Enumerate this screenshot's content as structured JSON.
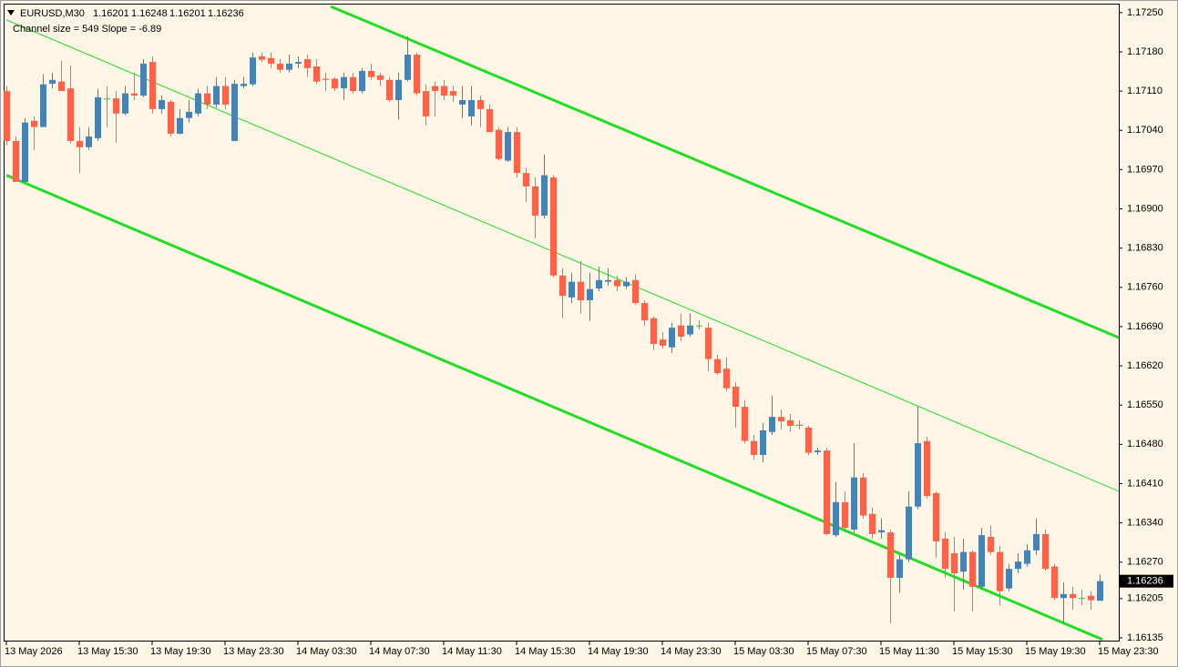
{
  "chart_data": {
    "type": "candlestick",
    "symbol": "EURUSD,M30",
    "quote": [
      1.16201,
      1.16248,
      1.16201,
      1.16236
    ],
    "channel_label": "Channel size = 549 Slope = -6.89",
    "up_color": "#4682b4",
    "down_color": "#ff6347",
    "doji_color": "#32cd32",
    "categories": [
      "13 May 2026",
      null,
      null,
      null,
      null,
      null,
      null,
      null,
      "13 May 15:30",
      null,
      null,
      null,
      null,
      null,
      null,
      null,
      "13 May 19:30",
      null,
      null,
      null,
      null,
      null,
      null,
      null,
      "13 May 23:30",
      null,
      null,
      null,
      null,
      null,
      null,
      null,
      "14 May 03:30",
      null,
      null,
      null,
      null,
      null,
      null,
      null,
      "14 May 07:30",
      null,
      null,
      null,
      null,
      null,
      null,
      null,
      "14 May 11:30",
      null,
      null,
      null,
      null,
      null,
      null,
      null,
      "14 May 15:30",
      null,
      null,
      null,
      null,
      null,
      null,
      null,
      "14 May 19:30",
      null,
      null,
      null,
      null,
      null,
      null,
      null,
      "14 May 23:30",
      null,
      null,
      null,
      null,
      null,
      null,
      null,
      "15 May 03:30",
      null,
      null,
      null,
      null,
      null,
      null,
      null,
      "15 May 07:30",
      null,
      null,
      null,
      null,
      null,
      null,
      null,
      "15 May 11:30",
      null,
      null,
      null,
      null,
      null,
      null,
      null,
      "15 May 15:30",
      null,
      null,
      null,
      null,
      null,
      null,
      null,
      "15 May 19:30",
      null,
      null,
      null,
      null,
      null,
      null,
      null,
      "15 May 23:30"
    ],
    "open": [
      1.1711,
      1.17021,
      1.16948,
      1.17057,
      1.17046,
      1.17123,
      1.17127,
      1.17115,
      1.17021,
      1.1701,
      1.17026,
      1.17097,
      1.17097,
      1.1707,
      1.17106,
      1.17102,
      1.17162,
      1.17078,
      1.17091,
      1.17034,
      1.17062,
      1.1707,
      1.17106,
      1.17086,
      1.17119,
      1.17021,
      1.17119,
      1.17122,
      1.17172,
      1.17169,
      1.17159,
      1.17148,
      1.17159,
      1.17167,
      1.17154,
      1.17132,
      1.17132,
      1.17115,
      1.17135,
      1.1711,
      1.17146,
      1.17138,
      1.1713,
      1.17094,
      1.1713,
      1.17175,
      1.1711,
      1.17119,
      1.17119,
      1.1711,
      1.17086,
      1.17065,
      1.17094,
      1.17078,
      1.17041,
      1.16986,
      1.17037,
      1.16964,
      1.1694,
      1.16888,
      1.16956,
      1.16781,
      1.16742,
      1.1677,
      1.16737,
      1.16758,
      1.1677,
      1.16773,
      1.16762,
      1.16773,
      1.16732,
      1.16705,
      1.16667,
      1.16653,
      1.16692,
      1.16676,
      1.16692,
      1.16688,
      1.16632,
      1.16615,
      1.16583,
      1.16547,
      1.16486,
      1.16461,
      1.16502,
      1.16529,
      1.16523,
      1.16515,
      1.1651,
      1.16466,
      1.16469,
      1.16318,
      1.16377,
      1.16328,
      1.16421,
      1.16356,
      1.16323,
      1.16323,
      1.16242,
      1.16275,
      1.16369,
      1.16486,
      1.16393,
      1.16312,
      1.16286,
      1.16253,
      1.16288,
      1.16226,
      1.16315,
      1.16288,
      1.16223,
      1.16258,
      1.16267,
      1.16291,
      1.1632,
      1.16262,
      1.16206,
      1.16213,
      1.16206,
      1.1621,
      1.16201
    ],
    "high": [
      1.17119,
      1.17029,
      1.17062,
      1.17065,
      1.1714,
      1.17143,
      1.17164,
      1.17156,
      1.17046,
      1.17046,
      1.17114,
      1.17119,
      1.1711,
      1.17119,
      1.17143,
      1.17167,
      1.17172,
      1.17102,
      1.17094,
      1.17078,
      1.17094,
      1.17114,
      1.17119,
      1.17135,
      1.17135,
      1.1713,
      1.17135,
      1.17179,
      1.17179,
      1.17179,
      1.17167,
      1.17175,
      1.17172,
      1.17175,
      1.17167,
      1.17143,
      1.17135,
      1.17143,
      1.17143,
      1.17151,
      1.17159,
      1.17143,
      1.17135,
      1.17143,
      1.17208,
      1.17179,
      1.17122,
      1.17127,
      1.1713,
      1.17119,
      1.17119,
      1.17119,
      1.17102,
      1.17086,
      1.17046,
      1.17046,
      1.17046,
      1.16973,
      1.16956,
      1.16997,
      1.1696,
      1.16794,
      1.16786,
      1.16807,
      1.16786,
      1.16797,
      1.16794,
      1.16781,
      1.16778,
      1.16783,
      1.16737,
      1.16708,
      1.1668,
      1.16697,
      1.16713,
      1.16713,
      1.16701,
      1.16697,
      1.1664,
      1.16635,
      1.16591,
      1.16559,
      1.16497,
      1.16518,
      1.16567,
      1.16542,
      1.16534,
      1.16523,
      1.16513,
      1.16474,
      1.16474,
      1.16413,
      1.16396,
      1.16482,
      1.16429,
      1.16367,
      1.16348,
      1.16328,
      1.16283,
      1.16396,
      1.16547,
      1.16494,
      1.16396,
      1.16323,
      1.16315,
      1.16312,
      1.16291,
      1.16331,
      1.16335,
      1.16299,
      1.16267,
      1.16286,
      1.16302,
      1.16348,
      1.16328,
      1.16267,
      1.16234,
      1.16226,
      1.16221,
      1.16218,
      1.16248
    ],
    "low": [
      1.17013,
      1.16948,
      1.16948,
      1.17005,
      1.17046,
      1.17115,
      1.1711,
      1.17016,
      1.16964,
      1.17005,
      1.17021,
      1.17046,
      1.17018,
      1.17067,
      1.17094,
      1.17099,
      1.1707,
      1.1707,
      1.17029,
      1.17033,
      1.17054,
      1.17065,
      1.17078,
      1.17081,
      1.17078,
      1.17021,
      1.17115,
      1.17119,
      1.17162,
      1.17151,
      1.17143,
      1.17143,
      1.17151,
      1.17135,
      1.17123,
      1.1711,
      1.1711,
      1.17094,
      1.17106,
      1.17106,
      1.1713,
      1.17119,
      1.17091,
      1.17059,
      1.17127,
      1.17102,
      1.17049,
      1.17065,
      1.17094,
      1.17091,
      1.17062,
      1.17049,
      1.17046,
      1.17037,
      1.16986,
      1.16984,
      1.16956,
      1.16912,
      1.16848,
      1.16883,
      1.16778,
      1.16705,
      1.16732,
      1.16713,
      1.167,
      1.16753,
      1.16763,
      1.16753,
      1.16757,
      1.16729,
      1.16692,
      1.16648,
      1.16651,
      1.16643,
      1.16664,
      1.16672,
      1.16685,
      1.1661,
      1.16604,
      1.16575,
      1.1651,
      1.16482,
      1.16453,
      1.16448,
      1.16497,
      1.16507,
      1.16502,
      1.16507,
      1.16461,
      1.16461,
      1.16318,
      1.16315,
      1.16323,
      1.16323,
      1.16348,
      1.16312,
      1.16312,
      1.16161,
      1.16215,
      1.1627,
      1.16364,
      1.16383,
      1.16278,
      1.16242,
      1.16182,
      1.16221,
      1.16182,
      1.16221,
      1.16283,
      1.16193,
      1.16218,
      1.1625,
      1.16262,
      1.16283,
      1.16255,
      1.16202,
      1.16161,
      1.16185,
      1.16193,
      1.16185,
      1.16201
    ],
    "close": [
      1.17021,
      1.16948,
      1.17054,
      1.17046,
      1.17122,
      1.1713,
      1.1711,
      1.17021,
      1.1701,
      1.17029,
      1.17099,
      1.17097,
      1.1707,
      1.17106,
      1.17102,
      1.17159,
      1.17078,
      1.17094,
      1.17034,
      1.17062,
      1.17073,
      1.17106,
      1.17086,
      1.17119,
      1.17086,
      1.17123,
      1.17123,
      1.1717,
      1.17166,
      1.17159,
      1.17148,
      1.17159,
      1.17162,
      1.17151,
      1.17127,
      1.1713,
      1.17115,
      1.17135,
      1.1711,
      1.17146,
      1.17135,
      1.1713,
      1.17094,
      1.1713,
      1.17175,
      1.17106,
      1.17065,
      1.1711,
      1.17102,
      1.17102,
      1.17094,
      1.17094,
      1.17078,
      1.17037,
      1.16989,
      1.17037,
      1.16964,
      1.1694,
      1.16888,
      1.1696,
      1.16781,
      1.16745,
      1.1677,
      1.16737,
      1.16757,
      1.16773,
      1.16773,
      1.16762,
      1.1677,
      1.16732,
      1.16701,
      1.16659,
      1.16656,
      1.16688,
      1.16672,
      1.16692,
      1.16692,
      1.16632,
      1.16607,
      1.1658,
      1.16547,
      1.16486,
      1.16461,
      1.16505,
      1.16529,
      1.16521,
      1.16513,
      1.16513,
      1.16465,
      1.16469,
      1.1632,
      1.16377,
      1.16331,
      1.16421,
      1.16353,
      1.1632,
      1.16327,
      1.16242,
      1.16275,
      1.16369,
      1.16482,
      1.16388,
      1.16307,
      1.16258,
      1.1625,
      1.16288,
      1.16226,
      1.16318,
      1.16288,
      1.16218,
      1.16258,
      1.16271,
      1.16291,
      1.1632,
      1.16258,
      1.16206,
      1.16213,
      1.16206,
      1.16206,
      1.16202,
      1.16236
    ],
    "channel": [
      {
        "color": "#22dd22",
        "x": [
          35.6,
          122.3
        ],
        "y": [
          1.17261,
          1.16669
        ]
      },
      {
        "color": "#22dd22",
        "x": [
          0,
          122.3
        ],
        "y": [
          1.17237,
          1.16395
        ]
      },
      {
        "color": "#22dd22",
        "x": [
          0,
          120.3
        ],
        "y": [
          1.1696,
          1.16132
        ]
      }
    ],
    "last_price": 1.16236,
    "ylim": [
      1.1613,
      1.17266
    ],
    "yticks": [
      {
        "value": 1.1725,
        "label": "1.17250"
      },
      {
        "value": 1.1718,
        "label": "1.17180"
      },
      {
        "value": 1.1711,
        "label": "1.17110"
      },
      {
        "value": 1.1704,
        "label": "1.17040"
      },
      {
        "value": 1.1697,
        "label": "1.16970"
      },
      {
        "value": 1.169,
        "label": "1.16900"
      },
      {
        "value": 1.1683,
        "label": "1.16830"
      },
      {
        "value": 1.1676,
        "label": "1.16760"
      },
      {
        "value": 1.1669,
        "label": "1.16690"
      },
      {
        "value": 1.1662,
        "label": "1.16620"
      },
      {
        "value": 1.1655,
        "label": "1.16550"
      },
      {
        "value": 1.1648,
        "label": "1.16480"
      },
      {
        "value": 1.1641,
        "label": "1.16410"
      },
      {
        "value": 1.1634,
        "label": "1.16340"
      },
      {
        "value": 1.1627,
        "label": "1.16270"
      },
      1.16205,
      1.16135
    ],
    "grid": false
  }
}
